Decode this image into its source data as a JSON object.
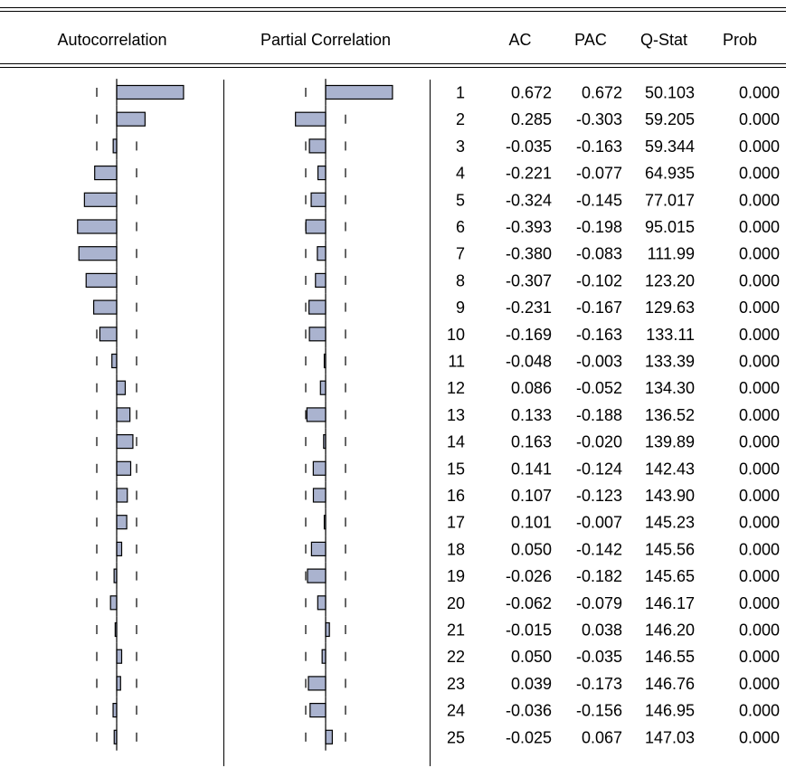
{
  "headers": {
    "autocorrelation": "Autocorrelation",
    "partial_correlation": "Partial Correlation",
    "lag": "",
    "ac": "AC",
    "pac": "PAC",
    "qstat": "Q-Stat",
    "prob": "Prob"
  },
  "colors": {
    "bar_fill": "#aab3cf",
    "bar_stroke": "#000000",
    "rule": "#000000"
  },
  "chart_data": {
    "type": "table",
    "confidence_band": 0.2,
    "columns": [
      "",
      "AC",
      "PAC",
      "Q-Stat",
      "Prob"
    ],
    "rows": [
      {
        "lag": "1",
        "ac": "0.672",
        "pac": "0.672",
        "q": "50.103",
        "prob": "0.000"
      },
      {
        "lag": "2",
        "ac": "0.285",
        "pac": "-0.303",
        "q": "59.205",
        "prob": "0.000"
      },
      {
        "lag": "3",
        "ac": "-0.035",
        "pac": "-0.163",
        "q": "59.344",
        "prob": "0.000"
      },
      {
        "lag": "4",
        "ac": "-0.221",
        "pac": "-0.077",
        "q": "64.935",
        "prob": "0.000"
      },
      {
        "lag": "5",
        "ac": "-0.324",
        "pac": "-0.145",
        "q": "77.017",
        "prob": "0.000"
      },
      {
        "lag": "6",
        "ac": "-0.393",
        "pac": "-0.198",
        "q": "95.015",
        "prob": "0.000"
      },
      {
        "lag": "7",
        "ac": "-0.380",
        "pac": "-0.083",
        "q": "111.99",
        "prob": "0.000"
      },
      {
        "lag": "8",
        "ac": "-0.307",
        "pac": "-0.102",
        "q": "123.20",
        "prob": "0.000"
      },
      {
        "lag": "9",
        "ac": "-0.231",
        "pac": "-0.167",
        "q": "129.63",
        "prob": "0.000"
      },
      {
        "lag": "10",
        "ac": "-0.169",
        "pac": "-0.163",
        "q": "133.11",
        "prob": "0.000"
      },
      {
        "lag": "11",
        "ac": "-0.048",
        "pac": "-0.003",
        "q": "133.39",
        "prob": "0.000"
      },
      {
        "lag": "12",
        "ac": "0.086",
        "pac": "-0.052",
        "q": "134.30",
        "prob": "0.000"
      },
      {
        "lag": "13",
        "ac": "0.133",
        "pac": "-0.188",
        "q": "136.52",
        "prob": "0.000"
      },
      {
        "lag": "14",
        "ac": "0.163",
        "pac": "-0.020",
        "q": "139.89",
        "prob": "0.000"
      },
      {
        "lag": "15",
        "ac": "0.141",
        "pac": "-0.124",
        "q": "142.43",
        "prob": "0.000"
      },
      {
        "lag": "16",
        "ac": "0.107",
        "pac": "-0.123",
        "q": "143.90",
        "prob": "0.000"
      },
      {
        "lag": "17",
        "ac": "0.101",
        "pac": "-0.007",
        "q": "145.23",
        "prob": "0.000"
      },
      {
        "lag": "18",
        "ac": "0.050",
        "pac": "-0.142",
        "q": "145.56",
        "prob": "0.000"
      },
      {
        "lag": "19",
        "ac": "-0.026",
        "pac": "-0.182",
        "q": "145.65",
        "prob": "0.000"
      },
      {
        "lag": "20",
        "ac": "-0.062",
        "pac": "-0.079",
        "q": "146.17",
        "prob": "0.000"
      },
      {
        "lag": "21",
        "ac": "-0.015",
        "pac": "0.038",
        "q": "146.20",
        "prob": "0.000"
      },
      {
        "lag": "22",
        "ac": "0.050",
        "pac": "-0.035",
        "q": "146.55",
        "prob": "0.000"
      },
      {
        "lag": "23",
        "ac": "0.039",
        "pac": "-0.173",
        "q": "146.76",
        "prob": "0.000"
      },
      {
        "lag": "24",
        "ac": "-0.036",
        "pac": "-0.156",
        "q": "146.95",
        "prob": "0.000"
      },
      {
        "lag": "25",
        "ac": "-0.025",
        "pac": "0.067",
        "q": "147.03",
        "prob": "0.000"
      }
    ]
  }
}
